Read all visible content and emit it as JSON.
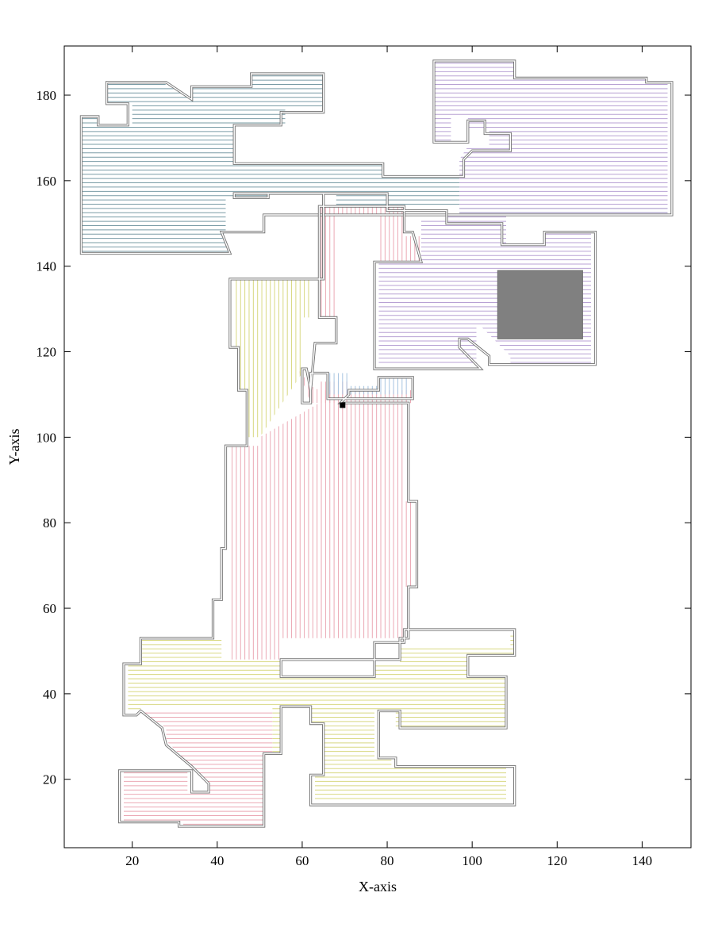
{
  "chart_data": {
    "type": "coverage-path-plot",
    "xlabel": "X-axis",
    "ylabel": "Y-axis",
    "xlim": [
      4,
      151.5
    ],
    "ylim": [
      4,
      191.5
    ],
    "x_ticks": [
      20,
      40,
      60,
      80,
      100,
      120,
      140
    ],
    "y_ticks": [
      20,
      40,
      60,
      80,
      100,
      120,
      140,
      160,
      180
    ],
    "grid": false,
    "legend": "none",
    "colors": {
      "outline": "#707070",
      "obstacle": "#808080",
      "start_marker": "#000000",
      "teal": "#7a9ca6",
      "purple": "#b8a2d4",
      "pink": "#eba9b5",
      "yellow": "#d8d882",
      "blue": "#a7c4e0"
    },
    "start_point": [
      69.5,
      107.5
    ],
    "regions": [
      {
        "color": "teal",
        "direction": "h",
        "spacing": 1.0,
        "points": [
          [
            8,
            175
          ],
          [
            12,
            175
          ],
          [
            12,
            173
          ],
          [
            20,
            173
          ],
          [
            20,
            178
          ],
          [
            14,
            178
          ],
          [
            14,
            183
          ],
          [
            27,
            183
          ],
          [
            34,
            179
          ],
          [
            34,
            182
          ],
          [
            48,
            182
          ],
          [
            48,
            185
          ],
          [
            65,
            185
          ],
          [
            65,
            177
          ],
          [
            56,
            177
          ],
          [
            56,
            173
          ],
          [
            44,
            173
          ],
          [
            44,
            164
          ],
          [
            79,
            164
          ],
          [
            79,
            161
          ],
          [
            97,
            161
          ],
          [
            97,
            152
          ],
          [
            146,
            152
          ],
          [
            146,
            154
          ],
          [
            68,
            154
          ],
          [
            68,
            157
          ],
          [
            52,
            157
          ],
          [
            52,
            156
          ],
          [
            42,
            156
          ],
          [
            42,
            148
          ],
          [
            41,
            147
          ],
          [
            43,
            143
          ],
          [
            8,
            143
          ]
        ]
      },
      {
        "color": "purple",
        "direction": "h",
        "spacing": 1.0,
        "points": [
          [
            91,
            188
          ],
          [
            110,
            188
          ],
          [
            110,
            184
          ],
          [
            141,
            184
          ],
          [
            141,
            183
          ],
          [
            146,
            183
          ],
          [
            146,
            152
          ],
          [
            97,
            152
          ],
          [
            97,
            165
          ],
          [
            99,
            168
          ],
          [
            109,
            168
          ],
          [
            109,
            165
          ],
          [
            104,
            165
          ],
          [
            104,
            172
          ],
          [
            99,
            172
          ],
          [
            99,
            175
          ],
          [
            95,
            175
          ],
          [
            95,
            169
          ],
          [
            91,
            169
          ]
        ]
      },
      {
        "color": "purple",
        "direction": "h",
        "spacing": 1.0,
        "points": [
          [
            78,
            141
          ],
          [
            88,
            141
          ],
          [
            88,
            151
          ],
          [
            94,
            151
          ],
          [
            94,
            152
          ],
          [
            108,
            152
          ],
          [
            108,
            145
          ],
          [
            117,
            145
          ],
          [
            117,
            148
          ],
          [
            128,
            148
          ],
          [
            128,
            117
          ],
          [
            109,
            117
          ],
          [
            109,
            119
          ],
          [
            102,
            126
          ],
          [
            101,
            126
          ],
          [
            101,
            117
          ],
          [
            78,
            117
          ]
        ]
      },
      {
        "color": "pink",
        "direction": "v",
        "spacing": 1.0,
        "points": [
          [
            64,
            154
          ],
          [
            84,
            154
          ],
          [
            84,
            147
          ],
          [
            88,
            147
          ],
          [
            88,
            141
          ],
          [
            78,
            141
          ],
          [
            78,
            152
          ],
          [
            68,
            152
          ],
          [
            68,
            128
          ],
          [
            64,
            128
          ],
          [
            64,
            111
          ],
          [
            62,
            112
          ],
          [
            59,
            116
          ],
          [
            62,
            108
          ],
          [
            71,
            108
          ],
          [
            71,
            113
          ],
          [
            64,
            113
          ]
        ]
      },
      {
        "color": "yellow",
        "direction": "v",
        "spacing": 1.0,
        "points": [
          [
            44,
            137
          ],
          [
            62,
            137
          ],
          [
            62,
            128
          ],
          [
            60,
            128
          ],
          [
            60,
            115
          ],
          [
            50,
            100
          ],
          [
            47,
            100
          ],
          [
            47,
            111
          ],
          [
            45,
            111
          ],
          [
            45,
            121
          ],
          [
            44,
            121
          ]
        ]
      },
      {
        "color": "pink",
        "direction": "v",
        "spacing": 1.0,
        "points": [
          [
            64,
            111
          ],
          [
            86,
            111
          ],
          [
            86,
            108
          ],
          [
            84,
            108
          ],
          [
            84,
            85
          ],
          [
            86,
            85
          ],
          [
            86,
            65
          ],
          [
            84,
            65
          ],
          [
            84,
            53
          ],
          [
            55,
            53
          ],
          [
            55,
            48
          ],
          [
            43,
            48
          ],
          [
            43,
            98
          ],
          [
            50,
            98
          ],
          [
            50,
            100
          ],
          [
            64,
            108
          ]
        ]
      },
      {
        "color": "blue",
        "direction": "v",
        "spacing": 1.0,
        "points": [
          [
            66,
            115
          ],
          [
            71,
            115
          ],
          [
            71,
            112
          ],
          [
            78,
            112
          ],
          [
            78,
            114
          ],
          [
            85,
            114
          ],
          [
            85,
            110
          ],
          [
            66,
            110
          ]
        ]
      },
      {
        "color": "yellow",
        "direction": "h",
        "spacing": 1.0,
        "points": [
          [
            19,
            47
          ],
          [
            22,
            47
          ],
          [
            22,
            53
          ],
          [
            41,
            53
          ],
          [
            41,
            48
          ],
          [
            55,
            48
          ],
          [
            55,
            44
          ],
          [
            77,
            44
          ],
          [
            77,
            47
          ],
          [
            83,
            47
          ],
          [
            83,
            51
          ],
          [
            109,
            51
          ],
          [
            109,
            54
          ],
          [
            110,
            54
          ],
          [
            110,
            49
          ],
          [
            99,
            49
          ],
          [
            99,
            44
          ],
          [
            108,
            44
          ],
          [
            108,
            32
          ],
          [
            82,
            32
          ],
          [
            82,
            36
          ],
          [
            77,
            36
          ],
          [
            77,
            25
          ],
          [
            81,
            25
          ],
          [
            81,
            23
          ],
          [
            108,
            23
          ],
          [
            108,
            15
          ],
          [
            63,
            15
          ],
          [
            63,
            21
          ],
          [
            65,
            21
          ],
          [
            65,
            33
          ],
          [
            62,
            33
          ],
          [
            62,
            37
          ],
          [
            55,
            37
          ],
          [
            55,
            26
          ],
          [
            53,
            26
          ],
          [
            53,
            37
          ],
          [
            22,
            37
          ],
          [
            22,
            36
          ],
          [
            19,
            36
          ]
        ]
      },
      {
        "color": "pink",
        "direction": "h",
        "spacing": 1.0,
        "points": [
          [
            22,
            36
          ],
          [
            53,
            36
          ],
          [
            53,
            26
          ],
          [
            51,
            26
          ],
          [
            51,
            9
          ],
          [
            32,
            9
          ],
          [
            32,
            10
          ],
          [
            18,
            10
          ],
          [
            18,
            22
          ],
          [
            33,
            22
          ],
          [
            33,
            17
          ],
          [
            38,
            17
          ],
          [
            38,
            19
          ],
          [
            28,
            29
          ],
          [
            28,
            32
          ]
        ]
      }
    ],
    "boundaries": [
      [
        [
          8,
          175
        ],
        [
          12,
          175
        ],
        [
          12,
          173
        ],
        [
          19,
          173
        ],
        [
          19,
          178
        ],
        [
          14,
          178
        ],
        [
          14,
          183
        ],
        [
          28,
          183
        ],
        [
          34,
          179
        ],
        [
          34,
          182
        ],
        [
          48,
          182
        ],
        [
          48,
          185
        ],
        [
          65,
          185
        ],
        [
          65,
          176
        ],
        [
          55,
          176
        ],
        [
          55,
          173
        ],
        [
          44,
          173
        ],
        [
          44,
          164
        ],
        [
          79,
          164
        ],
        [
          79,
          161
        ],
        [
          98,
          161
        ],
        [
          98,
          165
        ],
        [
          100,
          167
        ],
        [
          109,
          167
        ],
        [
          109,
          171
        ],
        [
          103,
          171
        ],
        [
          103,
          174
        ],
        [
          99,
          174
        ],
        [
          99,
          169
        ],
        [
          91,
          169
        ],
        [
          91,
          188
        ],
        [
          110,
          188
        ],
        [
          110,
          184
        ],
        [
          141,
          184
        ],
        [
          141,
          183
        ],
        [
          147,
          183
        ],
        [
          147,
          152
        ],
        [
          51,
          152
        ],
        [
          51,
          148
        ],
        [
          41,
          148
        ],
        [
          43,
          143
        ],
        [
          8,
          143
        ]
      ],
      [
        [
          44,
          156
        ],
        [
          52,
          156
        ],
        [
          52,
          157
        ],
        [
          65,
          157
        ],
        [
          65,
          137
        ],
        [
          43,
          137
        ],
        [
          43,
          121
        ],
        [
          45,
          121
        ],
        [
          45,
          111
        ],
        [
          47,
          111
        ],
        [
          47,
          98
        ],
        [
          42,
          98
        ],
        [
          42,
          74
        ],
        [
          41,
          74
        ],
        [
          41,
          62
        ],
        [
          39,
          62
        ],
        [
          39,
          53
        ],
        [
          22,
          53
        ],
        [
          22,
          47
        ],
        [
          18,
          47
        ],
        [
          18,
          35
        ],
        [
          21,
          35
        ],
        [
          22,
          36
        ],
        [
          27,
          32
        ],
        [
          28,
          28
        ],
        [
          34,
          23
        ],
        [
          38,
          19
        ],
        [
          38,
          17
        ],
        [
          34,
          17
        ],
        [
          34,
          22
        ],
        [
          17,
          22
        ],
        [
          17,
          10
        ],
        [
          31,
          10
        ],
        [
          31,
          9
        ],
        [
          51,
          9
        ],
        [
          51,
          26
        ],
        [
          55,
          26
        ],
        [
          55,
          37
        ],
        [
          62,
          37
        ],
        [
          62,
          33
        ],
        [
          65,
          33
        ],
        [
          65,
          21
        ],
        [
          62,
          21
        ],
        [
          62,
          14
        ],
        [
          110,
          14
        ],
        [
          110,
          23
        ],
        [
          82,
          23
        ],
        [
          82,
          25
        ],
        [
          78,
          25
        ],
        [
          78,
          36
        ],
        [
          83,
          36
        ],
        [
          83,
          32
        ],
        [
          108,
          32
        ],
        [
          108,
          44
        ],
        [
          99,
          44
        ],
        [
          99,
          49
        ],
        [
          110,
          49
        ],
        [
          110,
          55
        ],
        [
          84,
          55
        ],
        [
          84,
          52
        ],
        [
          77,
          52
        ],
        [
          77,
          44
        ],
        [
          55,
          44
        ],
        [
          55,
          48
        ],
        [
          83,
          48
        ],
        [
          83,
          53
        ],
        [
          85,
          53
        ],
        [
          85,
          65
        ],
        [
          87,
          65
        ],
        [
          87,
          85
        ],
        [
          85,
          85
        ],
        [
          85,
          108
        ],
        [
          69,
          108
        ],
        [
          71,
          110
        ],
        [
          71,
          111
        ],
        [
          78,
          111
        ],
        [
          78,
          114
        ],
        [
          86,
          114
        ],
        [
          86,
          109
        ],
        [
          66,
          109
        ],
        [
          66,
          115
        ],
        [
          62,
          115
        ],
        [
          62,
          108
        ],
        [
          60,
          108
        ],
        [
          60,
          116
        ],
        [
          61,
          116
        ],
        [
          62,
          111
        ],
        [
          63,
          122
        ],
        [
          68,
          122
        ],
        [
          68,
          128
        ],
        [
          64,
          128
        ],
        [
          64,
          154
        ],
        [
          84,
          154
        ],
        [
          84,
          148
        ],
        [
          86,
          148
        ],
        [
          88,
          141
        ],
        [
          77,
          141
        ],
        [
          77,
          116
        ],
        [
          96,
          116
        ],
        [
          102,
          116
        ],
        [
          97,
          121
        ],
        [
          97,
          123
        ],
        [
          99,
          123
        ],
        [
          104,
          119
        ],
        [
          104,
          117
        ],
        [
          129,
          117
        ],
        [
          129,
          148
        ],
        [
          117,
          148
        ],
        [
          117,
          145
        ],
        [
          107,
          145
        ],
        [
          107,
          150
        ],
        [
          94,
          150
        ],
        [
          94,
          153
        ],
        [
          80,
          153
        ],
        [
          80,
          157
        ],
        [
          44,
          157
        ]
      ]
    ],
    "obstacles": [
      [
        [
          106,
          123
        ],
        [
          126,
          123
        ],
        [
          126,
          139
        ],
        [
          106,
          139
        ]
      ]
    ]
  }
}
